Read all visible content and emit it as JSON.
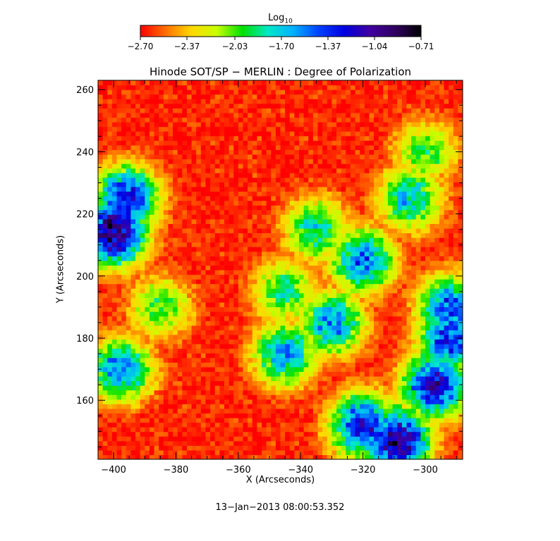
{
  "chart_data": {
    "type": "heatmap",
    "title": "Hinode SOT/SP − MERLIN : Degree of Polarization",
    "xlabel": "X (Arcseconds)",
    "ylabel": "Y (Arcseconds)",
    "xlim": [
      -405,
      -288
    ],
    "ylim": [
      141,
      263
    ],
    "xticks": [
      -400,
      -380,
      -360,
      -340,
      -320,
      -300
    ],
    "xtick_labels": [
      "−400",
      "−380",
      "−360",
      "−340",
      "−320",
      "−300"
    ],
    "yticks": [
      160,
      180,
      200,
      220,
      240,
      260
    ],
    "ytick_labels": [
      "160",
      "180",
      "200",
      "220",
      "240",
      "260"
    ],
    "colorbar": {
      "title": "Log",
      "title_sub": "10",
      "range": [
        -2.7,
        -0.71
      ],
      "tick_values": [
        -2.7,
        -2.37,
        -2.03,
        -1.7,
        -1.37,
        -1.04,
        -0.71
      ],
      "tick_labels": [
        "−2.70",
        "−2.37",
        "−2.03",
        "−1.70",
        "−1.37",
        "−1.04",
        "−0.71"
      ],
      "colormap": [
        "#ff0000",
        "#ff7000",
        "#ffd800",
        "#c8ff00",
        "#00e000",
        "#00e8c8",
        "#00b0ff",
        "#0040ff",
        "#0000e0",
        "#4000a0",
        "#300060",
        "#000000"
      ]
    },
    "features": [
      {
        "x": -400,
        "y": 214,
        "level": -0.75
      },
      {
        "x": -396,
        "y": 225,
        "level": -1.1
      },
      {
        "x": -309,
        "y": 147,
        "level": -0.8
      },
      {
        "x": -320,
        "y": 152,
        "level": -1.1
      },
      {
        "x": -297,
        "y": 165,
        "level": -1.0
      },
      {
        "x": -292,
        "y": 180,
        "level": -1.2
      },
      {
        "x": -292,
        "y": 190,
        "level": -1.3
      },
      {
        "x": -330,
        "y": 185,
        "level": -1.45
      },
      {
        "x": -345,
        "y": 175,
        "level": -1.5
      },
      {
        "x": -320,
        "y": 205,
        "level": -1.4
      },
      {
        "x": -305,
        "y": 225,
        "level": -1.6
      },
      {
        "x": -300,
        "y": 240,
        "level": -1.9
      },
      {
        "x": -385,
        "y": 190,
        "level": -1.9
      },
      {
        "x": -398,
        "y": 170,
        "level": -1.4
      },
      {
        "x": -345,
        "y": 195,
        "level": -1.8
      },
      {
        "x": -335,
        "y": 215,
        "level": -1.7
      }
    ]
  },
  "footer": {
    "timestamp": "13−Jan−2013 08:00:53.352"
  }
}
